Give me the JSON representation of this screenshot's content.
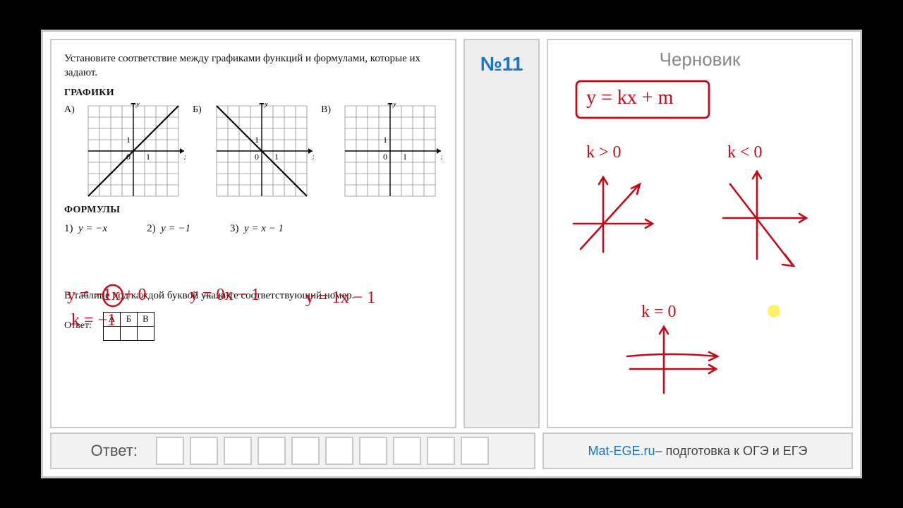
{
  "problemNumber": "№11",
  "draftTitle": "Черновик",
  "task": "Установите соответствие между графиками функций и формулами, которые их задают.",
  "sectionGraphs": "ГРАФИКИ",
  "sectionFormulas": "ФОРМУЛЫ",
  "graphLabels": {
    "a": "А)",
    "b": "Б)",
    "c": "В)"
  },
  "axis": {
    "x": "x",
    "y": "y",
    "one": "1",
    "zero": "0"
  },
  "formulas": {
    "f1n": "1)",
    "f1": "y = −x",
    "f2n": "2)",
    "f2": "y = −1",
    "f3n": "3)",
    "f3": "y = x − 1"
  },
  "hand": {
    "p1a": "y = −1x + 0",
    "p1b": "k = −1",
    "p2": "y = 0x − 1",
    "p3": "y = 1x − 1",
    "eq": "y = kx + m",
    "kpos": "k > 0",
    "kneg": "k < 0",
    "kzero": "k = 0"
  },
  "instruction": "В таблице под каждой буквой укажите соответствующий номер.",
  "answerWord": "Ответ:",
  "tableHeaders": [
    "А",
    "Б",
    "В"
  ],
  "bottomAnswerLabel": "Ответ:",
  "footer": {
    "link": "Mat-EGE.ru",
    "rest": " – подготовка к ОГЭ и ЕГЭ"
  },
  "style": {
    "handColor": "#c40a16",
    "gridColor": "#666666",
    "axisColor": "#000000",
    "lineColor": "#000000",
    "accentBlue": "#1875c7",
    "panelBorder": "#c9c9c9",
    "panelGrey": "#eeeeee",
    "barGrey": "#f2f2f2",
    "cursorDot": "#fff04d",
    "grid": {
      "size": 128,
      "cell": 16,
      "extent": 4
    },
    "lines": {
      "A": {
        "type": "line",
        "k": 1,
        "m": 0
      },
      "B": {
        "type": "line",
        "k": -1,
        "m": 0
      },
      "C": {
        "type": "none"
      }
    }
  }
}
